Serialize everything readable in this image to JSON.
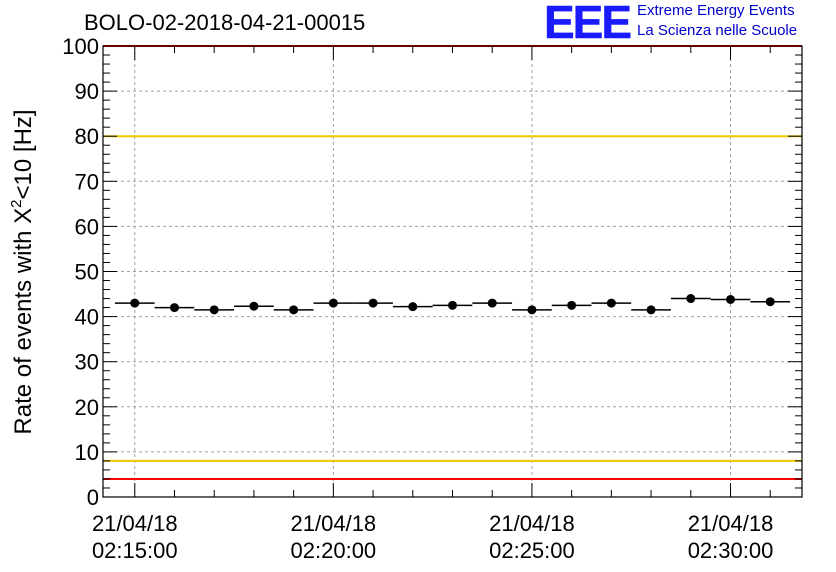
{
  "header": {
    "title": "BOLO-02-2018-04-21-00015",
    "logo_text": "EEE",
    "logo_line1": "Extreme Energy Events",
    "logo_line2": "La Scienza nelle Scuole"
  },
  "colors": {
    "data": "#000000",
    "upper_red": "#ff0000",
    "lower_red": "#ff0000",
    "upper_yellow": "#f0c800",
    "lower_yellow": "#f0c800",
    "grid": "#a0a0a0",
    "logo": "#1a1aff"
  },
  "chart_data": {
    "type": "scatter",
    "title": "BOLO-02-2018-04-21-00015",
    "ylabel_main": "Rate of events with X",
    "ylabel_sup": "2",
    "ylabel_tail": "<10 [Hz]",
    "ylim": [
      0,
      100
    ],
    "y_ticks": [
      0,
      10,
      20,
      30,
      40,
      50,
      60,
      70,
      80,
      90,
      100
    ],
    "x_tick_labels": [
      {
        "minute": 0,
        "date": "21/04/18",
        "time": "02:15:00"
      },
      {
        "minute": 5,
        "date": "21/04/18",
        "time": "02:20:00"
      },
      {
        "minute": 10,
        "date": "21/04/18",
        "time": "02:25:00"
      },
      {
        "minute": 15,
        "date": "21/04/18",
        "time": "02:30:00"
      }
    ],
    "x_unit": "minutes after 21/04/18 02:15:00",
    "xlim": [
      -0.8,
      16.8
    ],
    "x": [
      0,
      1,
      2,
      3,
      4,
      5,
      6,
      7,
      8,
      9,
      10,
      11,
      12,
      13,
      14,
      15,
      16
    ],
    "values": [
      43.0,
      42.0,
      41.5,
      42.3,
      41.5,
      43.0,
      43.0,
      42.2,
      42.5,
      43.0,
      41.5,
      42.5,
      43.0,
      41.5,
      44.0,
      43.8,
      43.3
    ],
    "bin_width": 1,
    "reference_lines": [
      {
        "name": "upper_red",
        "y": 100,
        "color": "red"
      },
      {
        "name": "upper_yellow",
        "y": 80,
        "color": "yellow"
      },
      {
        "name": "lower_yellow",
        "y": 8,
        "color": "yellow"
      },
      {
        "name": "lower_red",
        "y": 4,
        "color": "red"
      }
    ],
    "grid": true
  }
}
